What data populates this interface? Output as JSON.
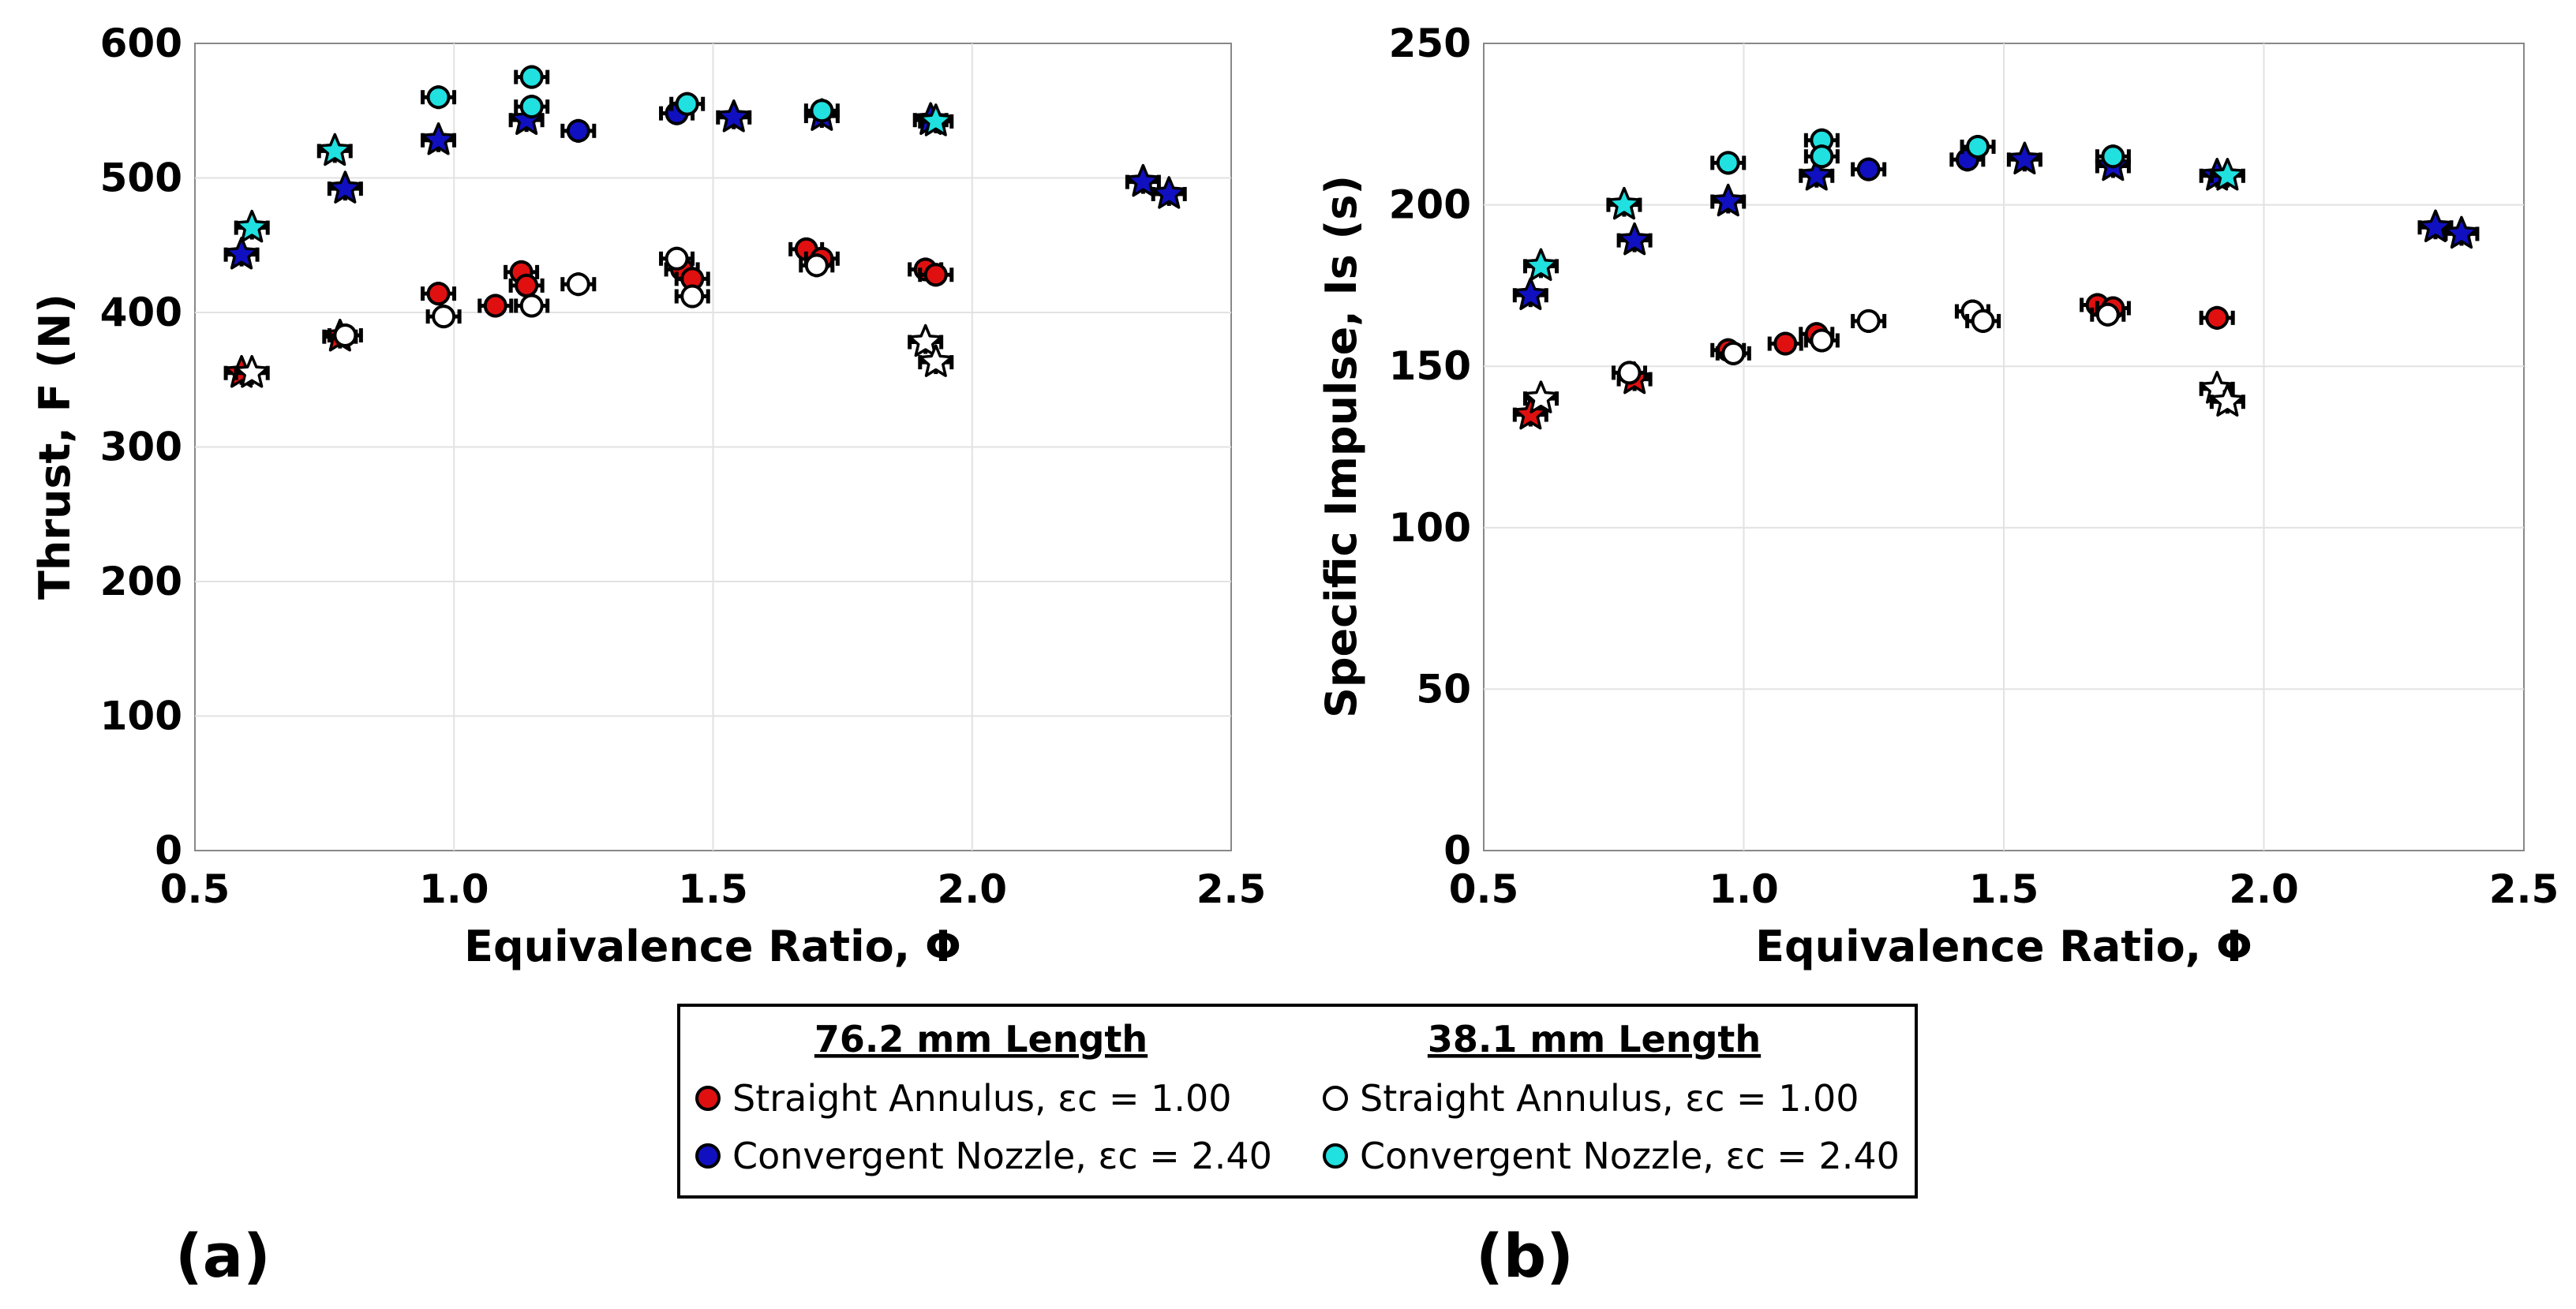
{
  "colors": {
    "straight_76": "#e01010",
    "convergent_76": "#1010c0",
    "straight_38": "#ffffff",
    "convergent_38": "#20e0e0"
  },
  "panel_labels": [
    "(a)",
    "(b)"
  ],
  "legend": {
    "group1_title": "76.2 mm Length",
    "group2_title": "38.1 mm Length",
    "entries": [
      {
        "label": "Straight Annulus, εc = 1.00",
        "series": "straight_76"
      },
      {
        "label": "Convergent Nozzle, εc = 2.40",
        "series": "convergent_76"
      },
      {
        "label": "Straight Annulus, εc = 1.00",
        "series": "straight_38"
      },
      {
        "label": "Convergent Nozzle, εc = 2.40",
        "series": "convergent_38"
      }
    ]
  },
  "chart_data": [
    {
      "type": "scatter",
      "title": "",
      "xlabel": "Equivalence Ratio, Φ",
      "ylabel": "Thrust, F (N)",
      "xlim": [
        0.5,
        2.5
      ],
      "ylim": [
        0,
        600
      ],
      "xticks": [
        "0.5",
        "1.0",
        "1.5",
        "2.0",
        "2.5"
      ],
      "yticks": [
        "0",
        "100",
        "200",
        "300",
        "400",
        "500",
        "600"
      ],
      "grid": true,
      "series": [
        {
          "name": "76.2 mm Straight Annulus",
          "key": "straight_76",
          "circles": [
            [
              0.97,
              414
            ],
            [
              1.08,
              405
            ],
            [
              1.13,
              430
            ],
            [
              1.14,
              420
            ],
            [
              1.44,
              432
            ],
            [
              1.46,
              425
            ],
            [
              1.68,
              447
            ],
            [
              1.71,
              440
            ],
            [
              1.91,
              432
            ],
            [
              1.93,
              428
            ]
          ],
          "stars": [
            [
              0.59,
              355
            ],
            [
              0.78,
              382
            ]
          ]
        },
        {
          "name": "76.2 mm Convergent Nozzle",
          "key": "convergent_76",
          "circles": [
            [
              1.24,
              535
            ],
            [
              1.43,
              548
            ]
          ],
          "stars": [
            [
              0.59,
              443
            ],
            [
              0.79,
              492
            ],
            [
              0.97,
              528
            ],
            [
              1.14,
              543
            ],
            [
              1.54,
              545
            ],
            [
              1.71,
              546
            ],
            [
              1.92,
              543
            ],
            [
              2.33,
              497
            ],
            [
              2.38,
              488
            ]
          ]
        },
        {
          "name": "38.1 mm Straight Annulus",
          "key": "straight_38",
          "circles": [
            [
              0.79,
              383
            ],
            [
              0.98,
              397
            ],
            [
              1.15,
              405
            ],
            [
              1.24,
              421
            ],
            [
              1.43,
              440
            ],
            [
              1.46,
              412
            ],
            [
              1.7,
              435
            ]
          ],
          "stars": [
            [
              0.61,
              355
            ],
            [
              1.91,
              378
            ],
            [
              1.93,
              363
            ]
          ]
        },
        {
          "name": "38.1 mm Convergent Nozzle",
          "key": "convergent_38",
          "circles": [
            [
              0.97,
              560
            ],
            [
              1.15,
              575
            ],
            [
              1.15,
              553
            ],
            [
              1.45,
              555
            ],
            [
              1.71,
              550
            ]
          ],
          "stars": [
            [
              0.61,
              463
            ],
            [
              0.77,
              520
            ],
            [
              1.93,
              542
            ]
          ]
        }
      ]
    },
    {
      "type": "scatter",
      "title": "",
      "xlabel": "Equivalence Ratio, Φ",
      "ylabel": "Specific Impulse, Is (s)",
      "xlim": [
        0.5,
        2.5
      ],
      "ylim": [
        0,
        250
      ],
      "xticks": [
        "0.5",
        "1.0",
        "1.5",
        "2.0",
        "2.5"
      ],
      "yticks": [
        "0",
        "50",
        "100",
        "150",
        "200",
        "250"
      ],
      "grid": true,
      "series": [
        {
          "name": "76.2 mm Straight Annulus",
          "key": "straight_76",
          "circles": [
            [
              0.97,
              155
            ],
            [
              1.08,
              157
            ],
            [
              1.14,
              160
            ],
            [
              1.44,
              167
            ],
            [
              1.68,
              169
            ],
            [
              1.71,
              168
            ],
            [
              1.91,
              165
            ]
          ],
          "stars": [
            [
              0.59,
              135
            ],
            [
              0.79,
              146
            ]
          ]
        },
        {
          "name": "76.2 mm Convergent Nozzle",
          "key": "convergent_76",
          "circles": [
            [
              1.24,
              211
            ],
            [
              1.43,
              214
            ]
          ],
          "stars": [
            [
              0.59,
              172
            ],
            [
              0.79,
              189
            ],
            [
              0.97,
              201
            ],
            [
              1.14,
              209
            ],
            [
              1.54,
              214
            ],
            [
              1.71,
              212
            ],
            [
              1.91,
              209
            ],
            [
              2.33,
              193
            ],
            [
              2.38,
              191
            ]
          ]
        },
        {
          "name": "38.1 mm Straight Annulus",
          "key": "straight_38",
          "circles": [
            [
              0.78,
              148
            ],
            [
              0.98,
              154
            ],
            [
              1.15,
              158
            ],
            [
              1.24,
              164
            ],
            [
              1.44,
              167
            ],
            [
              1.46,
              164
            ],
            [
              1.7,
              166
            ]
          ],
          "stars": [
            [
              0.61,
              140
            ],
            [
              1.91,
              143
            ],
            [
              1.93,
              139
            ]
          ]
        },
        {
          "name": "38.1 mm Convergent Nozzle",
          "key": "convergent_38",
          "circles": [
            [
              0.97,
              213
            ],
            [
              1.15,
              220
            ],
            [
              1.15,
              215
            ],
            [
              1.45,
              218
            ],
            [
              1.71,
              215
            ]
          ],
          "stars": [
            [
              0.61,
              181
            ],
            [
              0.77,
              200
            ],
            [
              1.93,
              209
            ]
          ]
        }
      ]
    }
  ]
}
